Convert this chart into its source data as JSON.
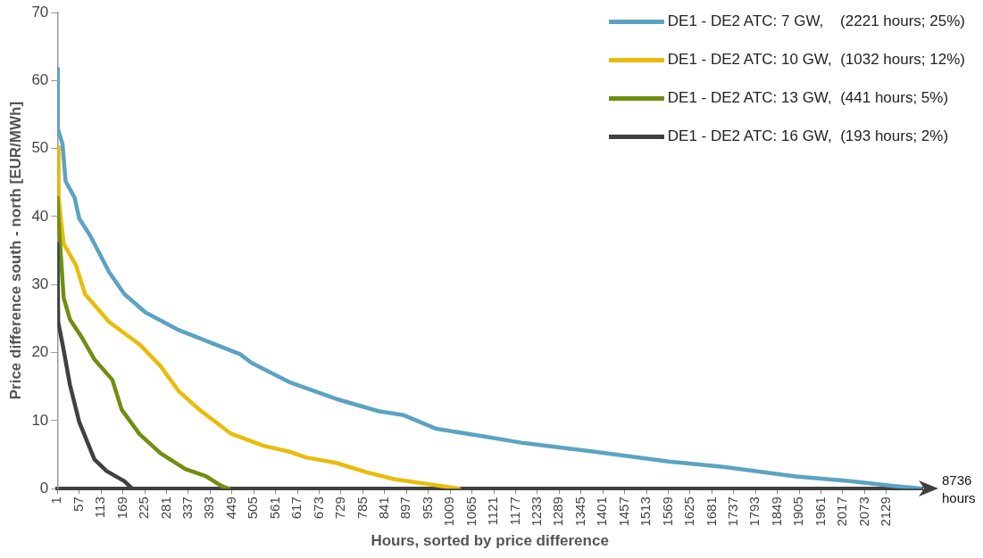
{
  "chart_data": {
    "type": "line",
    "xlabel": "Hours, sorted by price difference",
    "ylabel": "Price difference south - north [EUR/MWh]",
    "xlim": [
      1,
      2221
    ],
    "xticks": [
      1,
      57,
      113,
      169,
      225,
      281,
      337,
      393,
      449,
      505,
      561,
      617,
      673,
      729,
      785,
      841,
      897,
      953,
      1009,
      1065,
      1121,
      1177,
      1233,
      1289,
      1345,
      1401,
      1457,
      1513,
      1569,
      1625,
      1681,
      1737,
      1793,
      1849,
      1905,
      1961,
      2017,
      2073,
      2129
    ],
    "ylim": [
      0,
      70
    ],
    "yticks": [
      0,
      10,
      20,
      30,
      40,
      50,
      60,
      70
    ],
    "grid": false,
    "legend": "top right",
    "marker": "none",
    "line_style": "solid",
    "annotations": [
      "8736 hours"
    ],
    "series": [
      {
        "name": "DE1 - DE2 ATC: 7 GW,    (2221 hours; 25%)",
        "color": "#5ba3c2",
        "x": [
          1,
          2,
          14,
          22,
          45,
          57,
          84,
          134,
          173,
          227,
          313,
          406,
          469,
          499,
          599,
          716,
          825,
          890,
          974,
          1105,
          1198,
          1384,
          1570,
          1710,
          1896,
          2036,
          2148,
          2221
        ],
        "values": [
          61.7,
          52.9,
          50.7,
          45.2,
          42.8,
          39.7,
          37.3,
          31.8,
          28.6,
          25.9,
          23.3,
          21.2,
          19.8,
          18.5,
          15.6,
          13.2,
          11.4,
          10.8,
          8.8,
          7.6,
          6.7,
          5.4,
          4.0,
          3.2,
          1.8,
          1.1,
          0.4,
          0
        ]
      },
      {
        "name": "DE1 - DE2 ATC: 10 GW,  (1032 hours; 12%)",
        "color": "#e9bc0b",
        "x": [
          1,
          3,
          4,
          17,
          49,
          72,
          134,
          212,
          266,
          313,
          366,
          446,
          530,
          599,
          639,
          716,
          795,
          865,
          949,
          1032
        ],
        "values": [
          50.2,
          50.2,
          42.8,
          36,
          32.8,
          28.6,
          24.5,
          21.2,
          18,
          14.3,
          11.6,
          8.1,
          6.3,
          5.4,
          4.6,
          3.8,
          2.4,
          1.4,
          0.7,
          0
        ]
      },
      {
        "name": "DE1 - DE2 ATC: 13 GW,  (441 hours; 5%)",
        "color": "#6f8f11",
        "x": [
          1,
          2,
          5,
          17,
          33,
          64,
          96,
          142,
          166,
          212,
          266,
          329,
          383,
          422,
          441
        ],
        "values": [
          42.8,
          42.8,
          38.3,
          28.1,
          24.9,
          22.2,
          19,
          16,
          11.6,
          8,
          5.2,
          2.9,
          1.8,
          0.4,
          0
        ]
      },
      {
        "name": "DE1 - DE2 ATC: 16 GW,  (193 hours; 2%)",
        "color": "#404040",
        "x": [
          1,
          2,
          3,
          17,
          33,
          57,
          96,
          127,
          173,
          193
        ],
        "values": [
          36,
          36,
          24.5,
          20.4,
          15.3,
          9.8,
          4.3,
          2.6,
          1.1,
          0
        ]
      }
    ]
  }
}
